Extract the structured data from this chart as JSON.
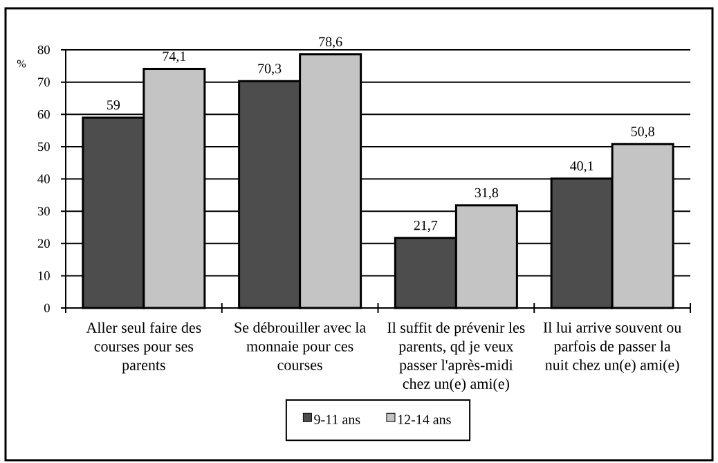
{
  "chart_data": {
    "type": "bar",
    "ylabel": "%",
    "categories": [
      "Aller seul faire des courses pour ses parents",
      "Se débrouiller avec la monnaie pour ces courses",
      "Il suffit de prévenir les parents, qd je veux passer l'après-midi chez un(e) ami(e)",
      "Il lui arrive souvent ou parfois de passer la nuit chez un(e) ami(e)"
    ],
    "series": [
      {
        "name": "9-11 ans",
        "color": "#4d4d4d",
        "values": [
          59,
          70.3,
          21.7,
          40.1
        ],
        "value_labels": [
          "59",
          "70,3",
          "21,7",
          "40,1"
        ]
      },
      {
        "name": "12-14 ans",
        "color": "#c4c4c4",
        "values": [
          74.1,
          78.6,
          31.8,
          50.8
        ],
        "value_labels": [
          "74,1",
          "78,6",
          "31,8",
          "50,8"
        ]
      }
    ],
    "ylim": [
      0,
      80
    ],
    "yticks": [
      0,
      10,
      20,
      30,
      40,
      50,
      60,
      70,
      80
    ],
    "grid": "y",
    "legend": "bottom"
  }
}
